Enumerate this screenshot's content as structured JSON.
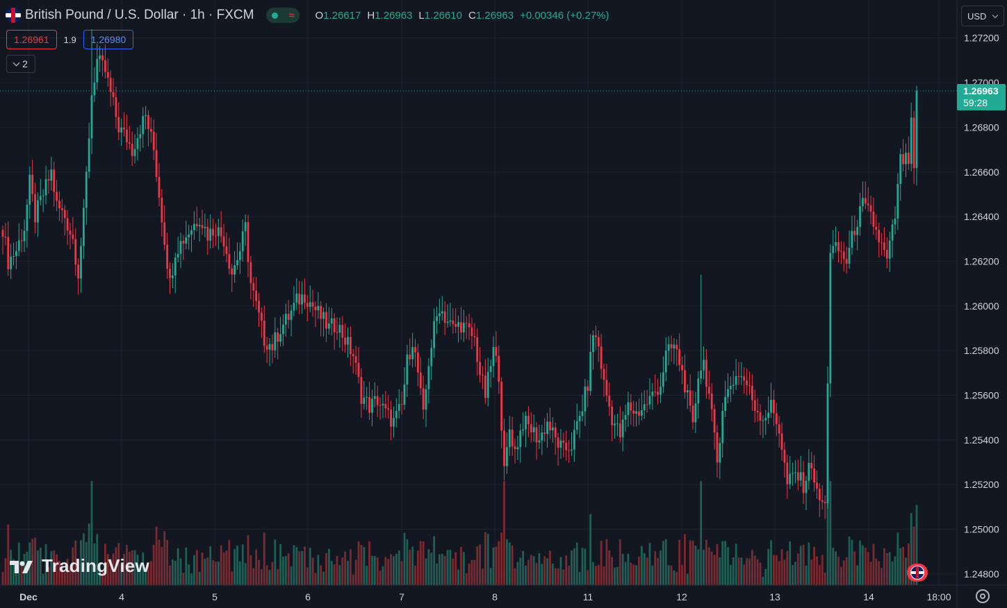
{
  "header": {
    "symbol_title": "British Pound / U.S. Dollar · 1h · FXCM",
    "ohlc": [
      {
        "key": "O",
        "value": "1.26617"
      },
      {
        "key": "H",
        "value": "1.26963"
      },
      {
        "key": "L",
        "value": "1.26610"
      },
      {
        "key": "C",
        "value": "1.26963"
      }
    ],
    "change": "+0.00346 (+0.27%)",
    "sell_price": "1.26961",
    "spread": "1.9",
    "buy_price": "1.26980",
    "indicator_count": "2",
    "currency": "USD"
  },
  "branding": {
    "logo_text": "TradingView"
  },
  "colors": {
    "up": "#22ab94",
    "down": "#f23645",
    "background": "#131722",
    "grid": "#1e222d"
  },
  "chart_data": {
    "type": "candlestick",
    "symbol": "GBPUSD",
    "interval": "1h",
    "ylim": [
      1.2475,
      1.2737
    ],
    "y_ticks": [
      "1.27200",
      "1.27000",
      "1.26800",
      "1.26600",
      "1.26400",
      "1.26200",
      "1.26000",
      "1.25800",
      "1.25600",
      "1.25400",
      "1.25200",
      "1.25000",
      "1.24800"
    ],
    "x_ticks": [
      "Dec",
      "4",
      "5",
      "6",
      "7",
      "8",
      "11",
      "12",
      "13",
      "14",
      "18:00"
    ],
    "last_price": "1.26963",
    "countdown": "59:28",
    "close_path": [
      [
        0,
        1.2635
      ],
      [
        2,
        1.262
      ],
      [
        5,
        1.2625
      ],
      [
        8,
        1.2635
      ],
      [
        10,
        1.2655
      ],
      [
        12,
        1.264
      ],
      [
        15,
        1.265
      ],
      [
        18,
        1.266
      ],
      [
        20,
        1.2645
      ],
      [
        23,
        1.264
      ],
      [
        26,
        1.263
      ],
      [
        28,
        1.2615
      ],
      [
        30,
        1.264
      ],
      [
        33,
        1.2695
      ],
      [
        35,
        1.271
      ],
      [
        38,
        1.2705
      ],
      [
        41,
        1.269
      ],
      [
        43,
        1.268
      ],
      [
        46,
        1.2675
      ],
      [
        48,
        1.267
      ],
      [
        51,
        1.268
      ],
      [
        53,
        1.2685
      ],
      [
        56,
        1.267
      ],
      [
        59,
        1.264
      ],
      [
        62,
        1.261
      ],
      [
        64,
        1.2625
      ],
      [
        67,
        1.263
      ],
      [
        70,
        1.2635
      ],
      [
        73,
        1.264
      ],
      [
        76,
        1.2632
      ],
      [
        79,
        1.2635
      ],
      [
        82,
        1.263
      ],
      [
        85,
        1.2615
      ],
      [
        88,
        1.2625
      ],
      [
        90,
        1.2635
      ],
      [
        92,
        1.261
      ],
      [
        95,
        1.2595
      ],
      [
        97,
        1.2585
      ],
      [
        100,
        1.2582
      ],
      [
        103,
        1.259
      ],
      [
        106,
        1.2595
      ],
      [
        109,
        1.2602
      ],
      [
        112,
        1.2605
      ],
      [
        115,
        1.26
      ],
      [
        118,
        1.2595
      ],
      [
        121,
        1.259
      ],
      [
        124,
        1.2592
      ],
      [
        127,
        1.2585
      ],
      [
        130,
        1.2578
      ],
      [
        133,
        1.256
      ],
      [
        136,
        1.2555
      ],
      [
        139,
        1.2558
      ],
      [
        142,
        1.2552
      ],
      [
        145,
        1.2548
      ],
      [
        148,
        1.2555
      ],
      [
        150,
        1.2575
      ],
      [
        152,
        1.2585
      ],
      [
        154,
        1.257
      ],
      [
        156,
        1.255
      ],
      [
        158,
        1.2575
      ],
      [
        160,
        1.259
      ],
      [
        162,
        1.26
      ],
      [
        164,
        1.2595
      ],
      [
        167,
        1.259
      ],
      [
        170,
        1.2592
      ],
      [
        173,
        1.2588
      ],
      [
        175,
        1.2585
      ],
      [
        177,
        1.257
      ],
      [
        179,
        1.256
      ],
      [
        182,
        1.258
      ],
      [
        184,
        1.257
      ],
      [
        186,
        1.2525
      ],
      [
        188,
        1.2545
      ],
      [
        190,
        1.2535
      ],
      [
        193,
        1.2548
      ],
      [
        196,
        1.2545
      ],
      [
        199,
        1.254
      ],
      [
        202,
        1.2548
      ],
      [
        205,
        1.254
      ],
      [
        208,
        1.2535
      ],
      [
        211,
        1.2538
      ],
      [
        214,
        1.255
      ],
      [
        217,
        1.2565
      ],
      [
        219,
        1.2588
      ],
      [
        221,
        1.2582
      ],
      [
        223,
        1.2565
      ],
      [
        226,
        1.255
      ],
      [
        229,
        1.2542
      ],
      [
        232,
        1.2555
      ],
      [
        235,
        1.2552
      ],
      [
        238,
        1.2555
      ],
      [
        241,
        1.256
      ],
      [
        244,
        1.2565
      ],
      [
        246,
        1.2578
      ],
      [
        249,
        1.2582
      ],
      [
        251,
        1.2575
      ],
      [
        253,
        1.2565
      ],
      [
        256,
        1.2545
      ],
      [
        258,
        1.257
      ],
      [
        260,
        1.2575
      ],
      [
        262,
        1.256
      ],
      [
        265,
        1.253
      ],
      [
        267,
        1.2555
      ],
      [
        270,
        1.2565
      ],
      [
        273,
        1.257
      ],
      [
        276,
        1.2565
      ],
      [
        279,
        1.2555
      ],
      [
        282,
        1.255
      ],
      [
        285,
        1.2555
      ],
      [
        288,
        1.2545
      ],
      [
        291,
        1.252
      ],
      [
        294,
        1.2525
      ],
      [
        297,
        1.252
      ],
      [
        300,
        1.253
      ],
      [
        302,
        1.2515
      ],
      [
        305,
        1.251
      ],
      [
        307,
        1.2625
      ],
      [
        310,
        1.2625
      ],
      [
        313,
        1.262
      ],
      [
        316,
        1.2635
      ],
      [
        319,
        1.2645
      ],
      [
        322,
        1.264
      ],
      [
        325,
        1.263
      ],
      [
        328,
        1.262
      ],
      [
        331,
        1.264
      ],
      [
        333,
        1.2665
      ],
      [
        336,
        1.2665
      ],
      [
        338,
        1.2696
      ]
    ],
    "anomalies": [
      {
        "index": 33,
        "high": 1.2724
      },
      {
        "index": 186,
        "low": 1.2522
      },
      {
        "index": 259,
        "high": 1.2614
      }
    ],
    "volume_max": 1
  }
}
